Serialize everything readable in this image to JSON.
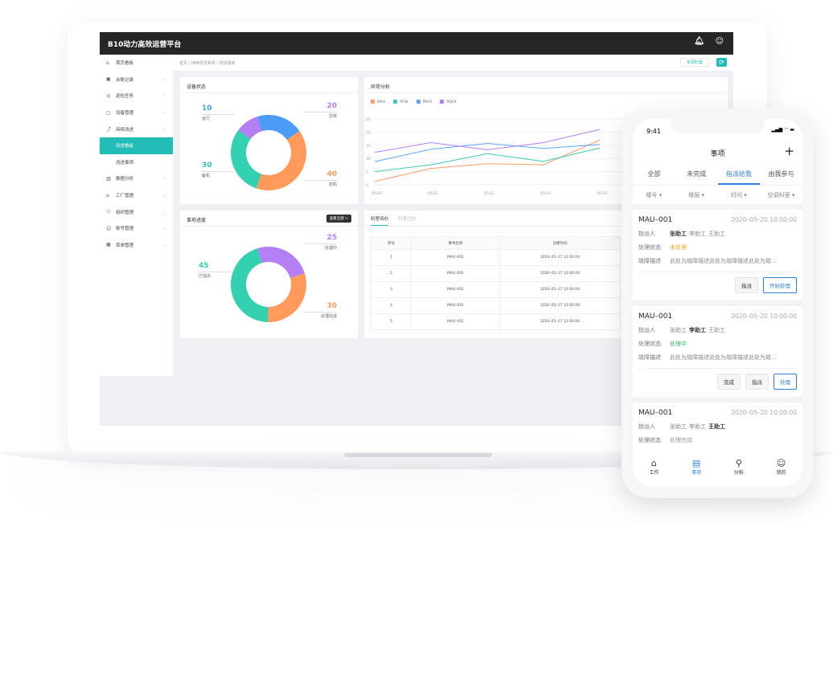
{
  "app": {
    "title": "B10动力高效运营平台",
    "icons": [
      "bell-icon",
      "user-icon"
    ]
  },
  "sidebar": {
    "items": [
      {
        "label": "首页看板",
        "icon": "⌂",
        "chev": false
      },
      {
        "label": "台账记录",
        "icon": "▣",
        "chev": true
      },
      {
        "label": "巡检任务",
        "icon": "◎",
        "chev": true
      },
      {
        "label": "设备管理",
        "icon": "▢",
        "chev": true
      },
      {
        "label": "持续改进",
        "icon": "⤴",
        "chev": true
      },
      {
        "label": "改进看板",
        "sub": true,
        "active": true
      },
      {
        "label": "改进事项",
        "sub": true
      },
      {
        "label": "数据分析",
        "icon": "▥",
        "chev": true
      },
      {
        "label": "工厂管理",
        "icon": "⌂",
        "chev": true
      },
      {
        "label": "组织管理",
        "icon": "⚇",
        "chev": true
      },
      {
        "label": "账号管理",
        "icon": "☺",
        "chev": true
      },
      {
        "label": "菜单管理",
        "icon": "▦",
        "chev": true
      }
    ]
  },
  "breadcrumb": "首页 / 持续改进系统 / 改进看板",
  "dept_button": "空调科室",
  "refresh_icon": "⟳",
  "chart_data": [
    {
      "type": "pie",
      "title": "设备状态",
      "donut": true,
      "slices": [
        {
          "label": "异常",
          "value": 20,
          "color": "#4a9cf5"
        },
        {
          "label": "宕机",
          "value": 40,
          "color": "#ff9a5a"
        },
        {
          "label": "备机",
          "value": 30,
          "color": "#33d1b0"
        },
        {
          "label": "运行",
          "value": 10,
          "color": "#b47ef5"
        }
      ],
      "label_colors": {
        "运行": "#4a9cf5",
        "异常": "#b47ef5",
        "备机": "#33c4b5",
        "宕机": "#ff9a5a"
      }
    },
    {
      "type": "line",
      "title": "异常分析",
      "categories": [
        "05/20",
        "05/21",
        "05/22",
        "05/23",
        "05/24"
      ],
      "ylim": [
        0,
        25
      ],
      "yticks": [
        0,
        5,
        10,
        15,
        20,
        25
      ],
      "grid": true,
      "legend": "top-left",
      "series": [
        {
          "name": "MAU",
          "color": "#ff9a6a",
          "values": [
            1.3,
            6.2,
            8,
            7.6,
            17
          ]
        },
        {
          "name": "PCW",
          "color": "#3cc9b8",
          "values": [
            5,
            7.6,
            11.8,
            8.9,
            14
          ]
        },
        {
          "name": "PREX",
          "color": "#5aa8f7",
          "values": [
            8.8,
            13.5,
            15.7,
            13.8,
            15.3
          ]
        },
        {
          "name": "PQEX",
          "color": "#b47ef5",
          "values": [
            12.3,
            16,
            13.3,
            16,
            21
          ]
        }
      ]
    },
    {
      "type": "pie",
      "title": "事项进度",
      "donut": true,
      "slices": [
        {
          "label": "处理中",
          "value": 25,
          "color": "#b47ef5"
        },
        {
          "label": "处理完成",
          "value": 30,
          "color": "#ff9a5a"
        },
        {
          "label": "已指派",
          "value": 45,
          "color": "#33d1b0"
        }
      ]
    }
  ],
  "progress_card": {
    "view_all": "查看全部 >"
  },
  "table_card": {
    "tabs": [
      "科室待办",
      "科室已办"
    ],
    "columns": [
      "序号",
      "事项名称",
      "创建时间"
    ],
    "rows": [
      [
        "1",
        "MAU–001",
        "2020–05–17 12:00:00"
      ],
      [
        "2",
        "MAU–001",
        "2020–05–17 12:00:00"
      ],
      [
        "3",
        "MAU–001",
        "2020–05–17 12:00:00"
      ],
      [
        "4",
        "MAU–001",
        "2020–05–17 12:00:00"
      ],
      [
        "5",
        "MAU–001",
        "2020–05–17 12:00:00"
      ]
    ]
  },
  "phone": {
    "time": "9:41",
    "status_icons": "▂▄▆ ◠ ▬",
    "title": "事项",
    "add": "+",
    "tabs": [
      "全部",
      "未完成",
      "指派给我",
      "由我参与"
    ],
    "active_tab": 2,
    "filters": [
      "楼号 ▾",
      "楼层 ▾",
      "时间 ▾",
      "空调科室 ▾"
    ],
    "cards": [
      {
        "id": "MAU–001",
        "time": "2020–05–20 10:00:00",
        "assign_label": "指派人",
        "assignees": [
          "张助工",
          "李助工",
          "王助工"
        ],
        "bold": 0,
        "status_label": "处理状态",
        "status": "未处理",
        "status_color": "#f5a623",
        "desc_label": "故障描述",
        "desc": "此处为故障描述此处为故障描述此处为故...",
        "buttons": [
          "指派",
          "开始处理"
        ]
      },
      {
        "id": "MAU–001",
        "time": "2020–05–20 10:00:00",
        "assign_label": "指派人",
        "assignees": [
          "张助工",
          "李助工",
          "王助工"
        ],
        "bold": 1,
        "status_label": "处理状态",
        "status": "处理中",
        "status_color": "#2dbf6a",
        "desc_label": "故障描述",
        "desc": "此处为故障描述此处为故障描述此处为故...",
        "buttons": [
          "完成",
          "指派",
          "处理"
        ]
      },
      {
        "id": "MAU–001",
        "time": "2020–05–20 10:00:00",
        "assign_label": "指派人",
        "assignees": [
          "张助工",
          "李助工",
          "王助工"
        ],
        "bold": 2,
        "status_label": "处理状态",
        "status": "处理完成",
        "status_color": "#999999"
      }
    ],
    "nav": [
      {
        "label": "工作",
        "icon": "⌂"
      },
      {
        "label": "事项",
        "icon": "▤",
        "active": true
      },
      {
        "label": "分析",
        "icon": "⚲"
      },
      {
        "label": "我的",
        "icon": "☺"
      }
    ]
  }
}
